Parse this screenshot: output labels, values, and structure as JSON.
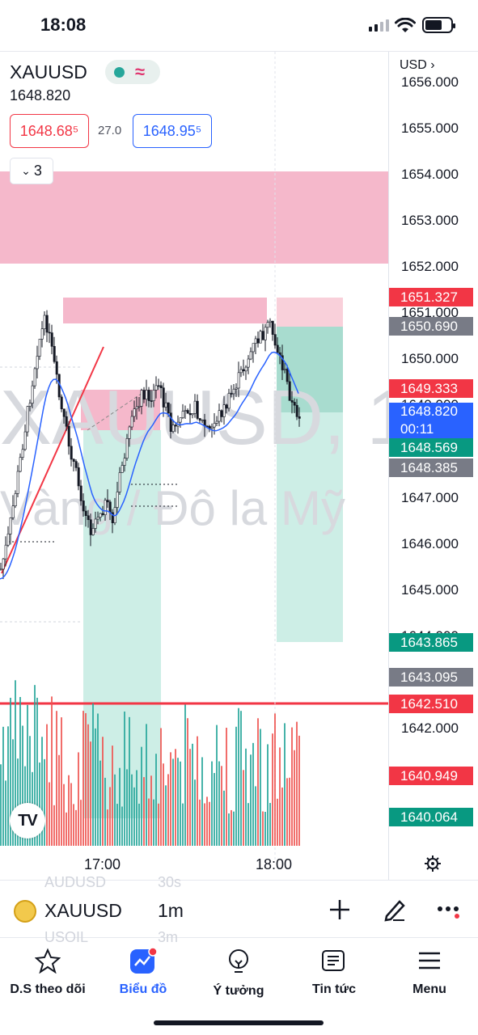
{
  "status_bar": {
    "time": "18:08"
  },
  "chart": {
    "symbol": "XAUUSD",
    "last_price": "1648.820",
    "bid": "1648.68⁵",
    "spread": "27.0",
    "ask": "1648.95⁵",
    "indicators_count": "3",
    "watermark_symbol": "XAUUSD, 1",
    "watermark_desc": "Vàng / Đô la Mỹ",
    "currency": "USD",
    "price_ticks": [
      "1656.000",
      "1655.000",
      "1654.000",
      "1653.000",
      "1652.000",
      "1651.000",
      "1650.000",
      "1649.000",
      "1647.000",
      "1646.000",
      "1645.000",
      "1644.000",
      "1642.000"
    ],
    "price_labels": [
      {
        "text": "1651.327",
        "color": "#f23645"
      },
      {
        "text": "1650.690",
        "color": "#787b86"
      },
      {
        "text": "1649.333",
        "color": "#f23645"
      },
      {
        "text": "1648.820",
        "sub": "00:11",
        "color": "#2962ff"
      },
      {
        "text": "1648.569",
        "color": "#089981"
      },
      {
        "text": "1648.385",
        "color": "#787b86"
      },
      {
        "text": "1643.865",
        "color": "#089981"
      },
      {
        "text": "1643.095",
        "color": "#787b86"
      },
      {
        "text": "1642.510",
        "color": "#f23645"
      },
      {
        "text": "1640.949",
        "color": "#f23645"
      },
      {
        "text": "1640.064",
        "color": "#089981"
      }
    ],
    "time_labels": [
      "17:00",
      "18:00"
    ],
    "colors": {
      "up": "#26a69a",
      "down": "#ef5350",
      "candle": "#131722",
      "ma": "#2962ff",
      "line": "#f23645"
    }
  },
  "toolbar": {
    "symbol": "XAUUSD",
    "timeframe": "1m",
    "ghost_above_symbol": "AUDUSD",
    "ghost_above_tf": "30s",
    "ghost_below_symbol": "USOIL",
    "ghost_below_tf": "3m"
  },
  "tabs": [
    {
      "label": "D.S theo dõi",
      "icon": "star-icon"
    },
    {
      "label": "Biểu đồ",
      "icon": "chart-icon",
      "active": true
    },
    {
      "label": "Ý tưởng",
      "icon": "lightbulb-icon"
    },
    {
      "label": "Tin tức",
      "icon": "news-icon"
    },
    {
      "label": "Menu",
      "icon": "menu-icon"
    }
  ]
}
